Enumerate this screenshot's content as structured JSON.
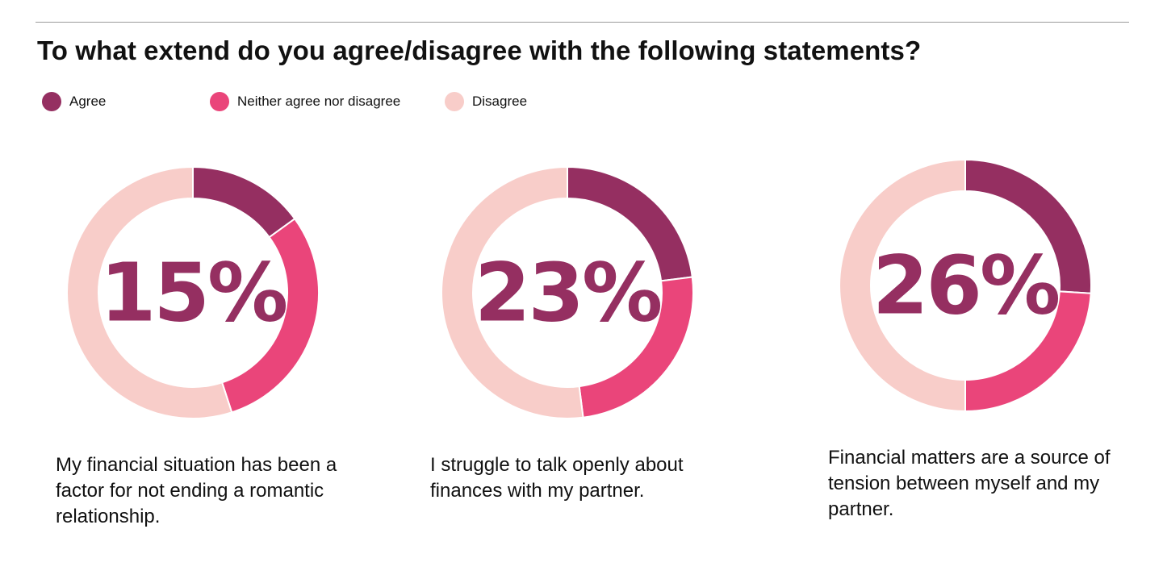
{
  "colors": {
    "agree": "#952f61",
    "neither": "#ea457a",
    "disagree": "#f8cdc9"
  },
  "chart_data": {
    "type": "pie",
    "title": "To what extend do you agree/disagree with the following statements?",
    "legend": [
      {
        "name": "Agree",
        "color": "#952f61"
      },
      {
        "name": "Neither agree nor disagree",
        "color": "#ea457a"
      },
      {
        "name": "Disagree",
        "color": "#f8cdc9"
      }
    ],
    "legend_placement": "top-left",
    "categories": [
      "Agree",
      "Neither agree nor disagree",
      "Disagree"
    ],
    "charts": [
      {
        "statement": "My financial situation has been a factor for not ending a romantic relationship.",
        "center_label": "15%",
        "values": [
          15,
          30,
          55
        ]
      },
      {
        "statement": "I struggle to talk openly about finances with my partner.",
        "center_label": "23%",
        "values": [
          23,
          25,
          52
        ]
      },
      {
        "statement": "Financial matters are a source of tension between myself and my partner.",
        "center_label": "26%",
        "values": [
          26,
          24,
          50
        ]
      }
    ]
  }
}
